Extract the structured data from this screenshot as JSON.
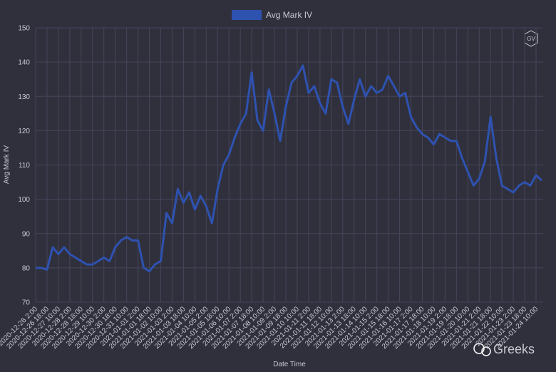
{
  "chart_data": {
    "type": "line",
    "x_label": "Date Time",
    "y_label": "Avg Mark IV",
    "watermark": "Greeks",
    "categories": [
      "2020-12-26 2:00",
      null,
      "2020-12-26 18:00",
      null,
      "2020-12-27 10:00",
      null,
      "2020-12-28 2:00",
      null,
      "2020-12-28 18:00",
      null,
      "2020-12-29 10:00",
      null,
      "2020-12-30 2:00",
      null,
      "2020-12-30 18:00",
      null,
      "2020-12-31 10:00",
      null,
      "2021-01-01 2:00",
      null,
      "2021-01-01 18:00",
      null,
      "2021-01-02 10:00",
      null,
      "2021-01-03 2:00",
      null,
      "2021-01-03 18:00",
      null,
      "2021-01-04 10:00",
      null,
      "2021-01-05 2:00",
      null,
      "2021-01-05 18:00",
      null,
      "2021-01-06 10:00",
      null,
      "2021-01-07 2:00",
      null,
      "2021-01-07 18:00",
      null,
      "2021-01-08 10:00",
      null,
      "2021-01-09 2:00",
      null,
      "2021-01-09 18:00",
      null,
      "2021-01-10 10:00",
      null,
      "2021-01-11 2:00",
      null,
      "2021-01-11 18:00",
      null,
      "2021-01-12 10:00",
      null,
      "2021-01-13 2:00",
      null,
      "2021-01-13 18:00",
      null,
      "2021-01-14 10:00",
      null,
      "2021-01-15 2:00",
      null,
      "2021-01-15 18:00",
      null,
      "2021-01-16 10:00",
      null,
      "2021-01-17 2:00",
      null,
      "2021-01-17 18:00",
      null,
      "2021-01-18 10:00",
      null,
      "2021-01-19 2:00",
      null,
      "2021-01-19 18:00",
      null,
      "2021-01-20 10:00",
      null,
      "2021-01-21 2:00",
      null,
      "2021-01-21 18:00",
      null,
      "2021-01-22 10:00",
      null,
      "2021-01-23 2:00",
      null,
      "2021-01-23 18:00",
      null,
      "2021-01-24 10:00",
      null
    ],
    "series": [
      {
        "name": "Avg Mark IV",
        "color": "#2e52b0",
        "values": [
          80,
          80,
          79.5,
          86,
          84,
          86,
          84,
          83,
          82,
          81,
          81,
          82,
          83,
          82,
          86,
          88,
          89,
          88,
          88,
          80,
          79,
          81,
          82,
          96,
          93,
          103,
          99,
          102,
          97,
          101,
          98,
          93,
          103,
          110,
          113,
          118,
          122,
          125,
          137,
          123,
          120,
          132,
          125,
          117,
          127,
          134,
          136,
          139,
          131,
          133,
          128,
          125,
          135,
          134,
          127,
          122,
          129,
          135,
          130,
          133,
          131,
          132,
          136,
          133,
          130,
          131,
          124,
          121,
          119,
          118,
          116,
          119,
          118,
          117,
          117,
          112,
          108,
          104,
          106,
          111,
          124,
          112,
          104,
          103,
          102,
          104,
          105,
          104,
          107,
          105.5
        ]
      }
    ],
    "ylim": [
      70,
      150
    ],
    "yticks": [
      70,
      80,
      90,
      100,
      110,
      120,
      130,
      140,
      150
    ],
    "grid": true
  }
}
